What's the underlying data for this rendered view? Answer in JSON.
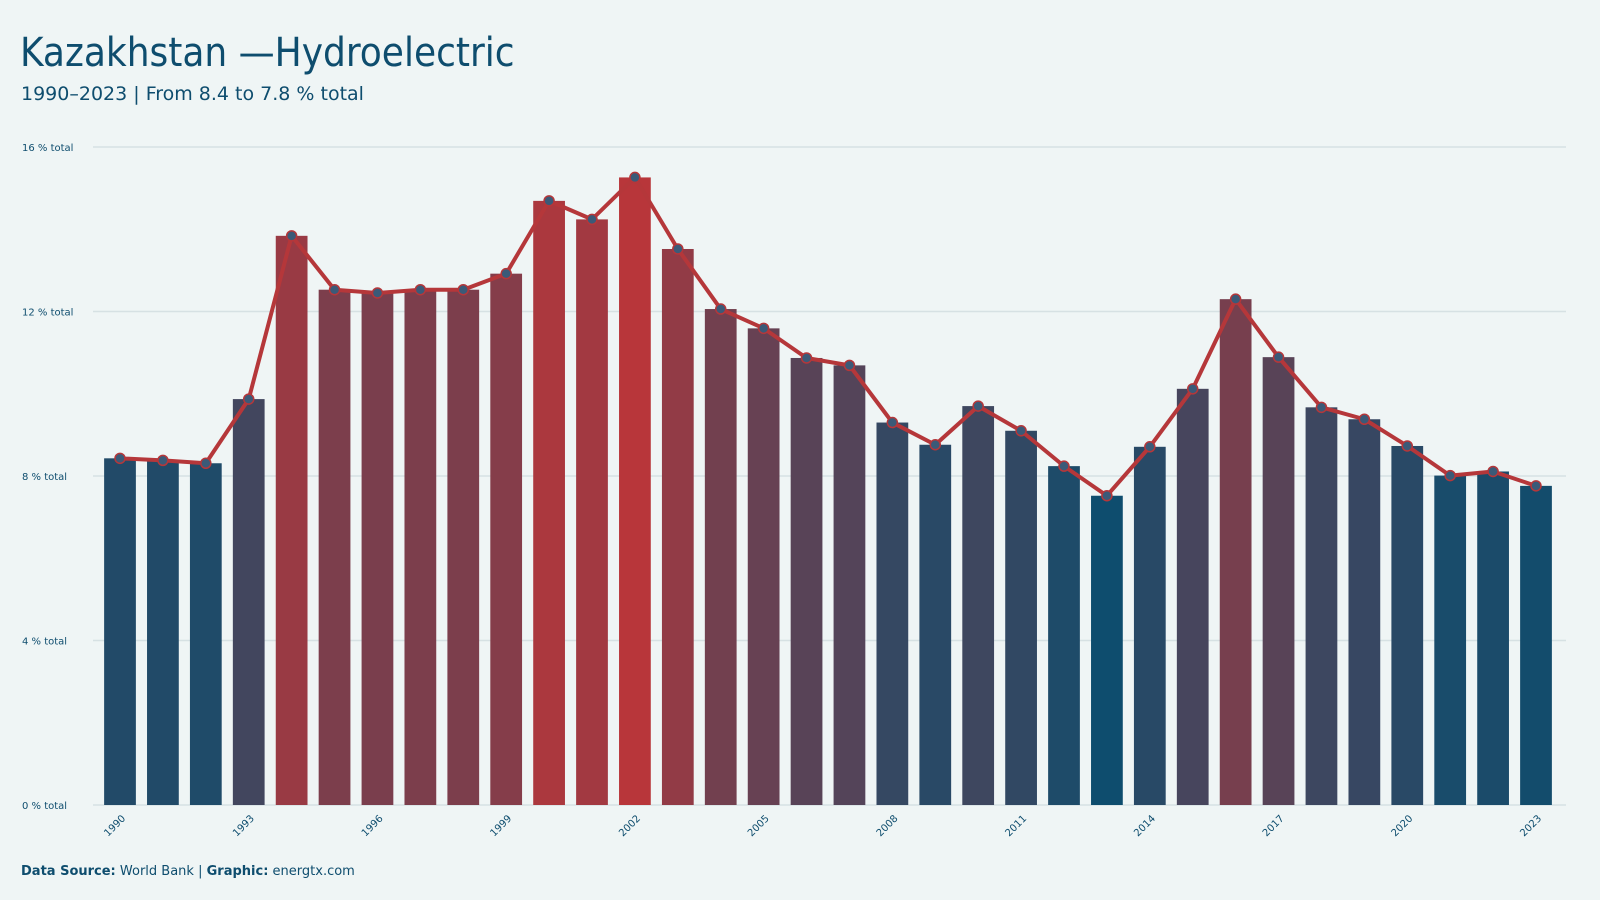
{
  "chart_data": {
    "type": "bar",
    "title": "Kazakhstan —Hydroelectric",
    "subtitle": "1990–2023 | From 8.4 to 7.8 % total",
    "x": [
      1990,
      1991,
      1992,
      1993,
      1994,
      1995,
      1996,
      1997,
      1998,
      1999,
      2000,
      2001,
      2002,
      2003,
      2004,
      2005,
      2006,
      2007,
      2008,
      2009,
      2010,
      2011,
      2012,
      2013,
      2014,
      2015,
      2016,
      2017,
      2018,
      2019,
      2020,
      2021,
      2022,
      2023
    ],
    "values": [
      8.43,
      8.38,
      8.31,
      9.87,
      13.84,
      12.53,
      12.45,
      12.53,
      12.53,
      12.92,
      14.69,
      14.24,
      15.26,
      13.52,
      12.06,
      11.59,
      10.87,
      10.69,
      9.3,
      8.76,
      9.7,
      9.1,
      8.24,
      7.52,
      8.71,
      10.12,
      12.3,
      10.89,
      9.67,
      9.38,
      8.73,
      8.01,
      8.11,
      7.76
    ],
    "xticks": [
      1990,
      1993,
      1996,
      1999,
      2002,
      2005,
      2008,
      2011,
      2014,
      2017,
      2020,
      2023
    ],
    "ylim": [
      0,
      16
    ],
    "yticks": [
      {
        "value": 0,
        "label": "0 % total"
      },
      {
        "value": 4,
        "label": "4 % total"
      },
      {
        "value": 8,
        "label": "8 % total"
      },
      {
        "value": 12,
        "label": "12 % total"
      },
      {
        "value": 16,
        "label": "16 % total"
      }
    ],
    "grid": true,
    "color_scale": [
      "#0e4d6e",
      "#b8363a"
    ],
    "line_color": "#b5373a",
    "marker_color": "#3b5a78",
    "footer": {
      "source_label": "Data Source:",
      "source": "World Bank",
      "separator": "|",
      "graphic_label": "Graphic:",
      "graphic": "energtx.com"
    }
  }
}
